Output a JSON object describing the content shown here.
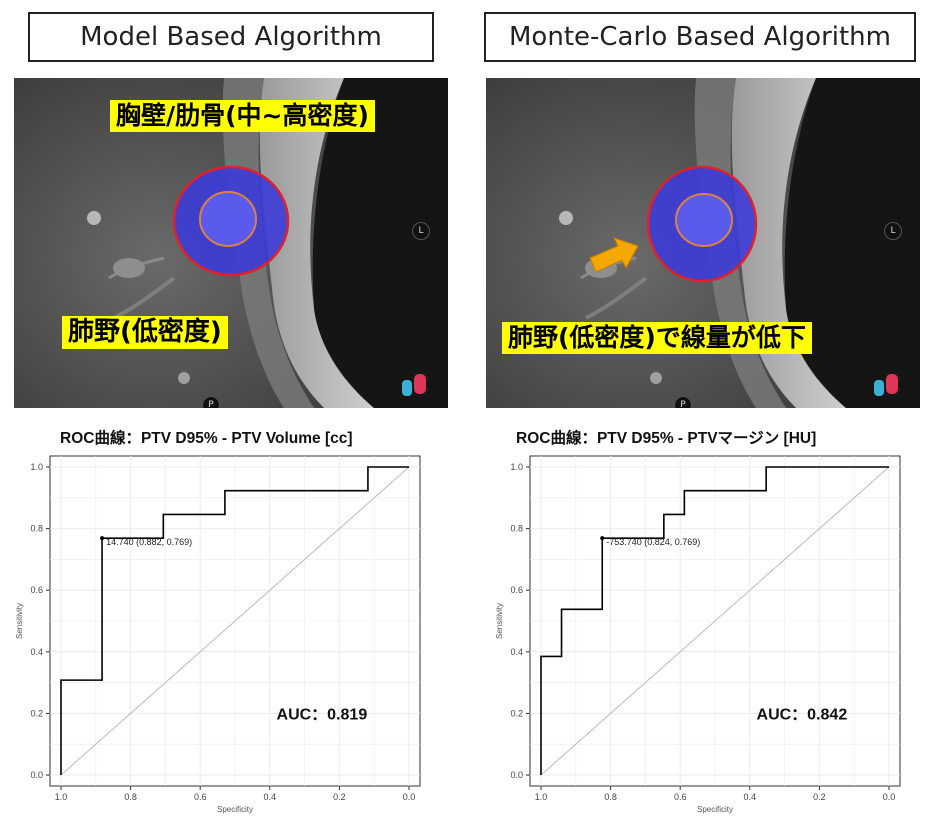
{
  "panels": {
    "left": {
      "title": "Model Based Algorithm",
      "label_top": "胸壁/肋骨(中~高密度)",
      "label_bottom": "肺野(低密度)",
      "marker_l": "L",
      "marker_p": "P"
    },
    "right": {
      "title": "Monte-Carlo Based Algorithm",
      "label_bottom": "肺野(低密度)で線量が低下",
      "marker_l": "L",
      "marker_p": "P"
    }
  },
  "colors": {
    "label_bg": "#ffff00",
    "roc_line": "#000000",
    "diagonal": "#bbbbbb",
    "grid": "#ebebeb",
    "dose_fill": "#3c3cd8",
    "ptv_outline": "#e0202a",
    "gtv_outline": "#e08040",
    "arrow": "#f5a800"
  },
  "chart_data": [
    {
      "type": "line",
      "title": "ROC曲線：PTV D95% - PTV Volume [cc]",
      "xlabel": "Specificity",
      "ylabel": "Sensitivity",
      "xlim": [
        1.0,
        0.0
      ],
      "ylim": [
        0.0,
        1.0
      ],
      "x_reversed": true,
      "xticks": [
        "1.0",
        "0.8",
        "0.6",
        "0.4",
        "0.2",
        "0.0"
      ],
      "yticks": [
        "0.0",
        "0.2",
        "0.4",
        "0.6",
        "0.8",
        "1.0"
      ],
      "grid": true,
      "specificity": [
        1.0,
        1.0,
        0.882,
        0.882,
        0.706,
        0.706,
        0.529,
        0.529,
        0.118,
        0.118,
        0.0
      ],
      "sensitivity": [
        0.0,
        0.308,
        0.308,
        0.769,
        0.769,
        0.846,
        0.846,
        0.923,
        0.923,
        1.0,
        1.0
      ],
      "threshold_point": {
        "specificity": 0.882,
        "sensitivity": 0.769,
        "label": "14.740 (0.882, 0.769)"
      },
      "annotation": "AUC：0.819"
    },
    {
      "type": "line",
      "title": "ROC曲線：PTV D95% - PTVマージン [HU]",
      "xlabel": "Specificity",
      "ylabel": "Sensitivity",
      "xlim": [
        1.0,
        0.0
      ],
      "ylim": [
        0.0,
        1.0
      ],
      "x_reversed": true,
      "xticks": [
        "1.0",
        "0.8",
        "0.6",
        "0.4",
        "0.2",
        "0.0"
      ],
      "yticks": [
        "0.0",
        "0.2",
        "0.4",
        "0.6",
        "0.8",
        "1.0"
      ],
      "grid": true,
      "specificity": [
        1.0,
        1.0,
        0.941,
        0.941,
        0.824,
        0.824,
        0.647,
        0.647,
        0.588,
        0.588,
        0.353,
        0.353,
        0.0
      ],
      "sensitivity": [
        0.0,
        0.385,
        0.385,
        0.538,
        0.538,
        0.769,
        0.769,
        0.846,
        0.846,
        0.923,
        0.923,
        1.0,
        1.0
      ],
      "threshold_point": {
        "specificity": 0.824,
        "sensitivity": 0.769,
        "label": "-753.740 (0.824, 0.769)"
      },
      "annotation": "AUC：0.842"
    }
  ]
}
